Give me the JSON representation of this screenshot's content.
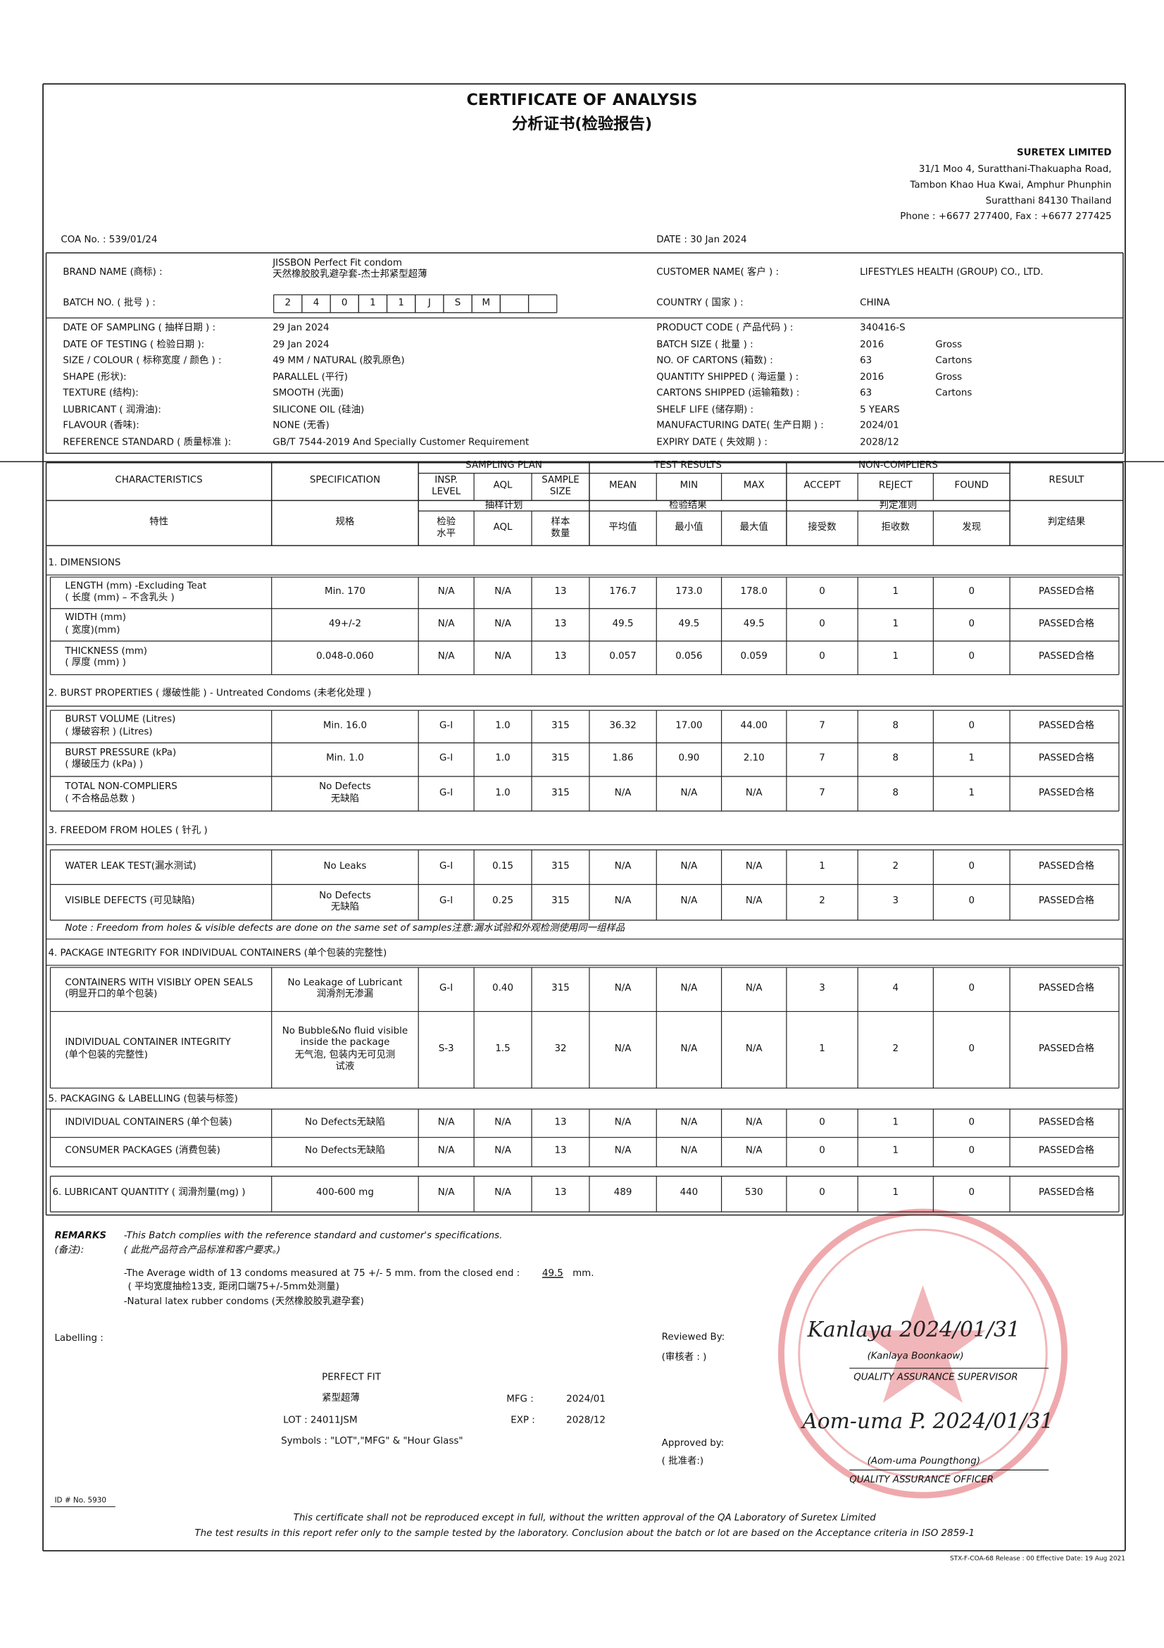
{
  "header": {
    "title": "CERTIFICATE OF ANALYSIS",
    "title_cn": "分析证书(检验报告)",
    "company": "SURETEX LIMITED",
    "address": [
      "31/1 Moo 4, Suratthani-Thakuapha Road,",
      "Tambon Khao Hua Kwai, Amphur Phunphin",
      "Suratthani  84130 Thailand",
      "Phone : +6677 277400, Fax : +6677 277425"
    ],
    "coa_no": "COA No. : 539/01/24",
    "date": "DATE : 30 Jan 2024"
  },
  "info": {
    "brand": {
      "label": "BRAND NAME (商标) :",
      "value": "JISSBON Perfect Fit condom\n天然橡胶胶乳避孕套-杰士邦紧型超薄"
    },
    "batch": {
      "label": "BATCH NO. ( 批号 ) :",
      "boxes": [
        "2",
        "4",
        "0",
        "1",
        "1",
        "J",
        "S",
        "M"
      ]
    },
    "customer": {
      "label": "CUSTOMER NAME( 客户 ) :",
      "value": "LIFESTYLES HEALTH (GROUP) CO., LTD."
    },
    "country": {
      "label": "COUNTRY ( 国家 ) :",
      "value": "CHINA"
    },
    "left": [
      [
        "DATE OF SAMPLING ( 抽样日期 ) :",
        "29 Jan 2024"
      ],
      [
        "DATE OF TESTING ( 检验日期 ):",
        "29 Jan 2024"
      ],
      [
        "SIZE / COLOUR ( 标称宽度 / 颜色 ) :",
        "49 MM / NATURAL (胶乳原色)"
      ],
      [
        "SHAPE (形状):",
        "PARALLEL (平行)"
      ],
      [
        "TEXTURE (结构):",
        "SMOOTH (光面)"
      ],
      [
        "LUBRICANT ( 润滑油):",
        "SILICONE OIL (硅油)"
      ],
      [
        "FLAVOUR (香味):",
        "NONE (无香)"
      ],
      [
        "REFERENCE STANDARD ( 质量标准 ):",
        "GB/T 7544-2019 And Specially Customer Requirement"
      ]
    ],
    "right": [
      [
        "PRODUCT CODE ( 产品代码 ) :",
        "340416-S"
      ],
      [
        "BATCH SIZE ( 批量 ) :",
        "2016",
        "Gross"
      ],
      [
        "NO. OF CARTONS (箱数) :",
        "63",
        "Cartons"
      ],
      [
        "QUANTITY SHIPPED ( 海运量 ) :",
        "2016",
        "Gross"
      ],
      [
        "CARTONS SHIPPED (运输箱数) :",
        "63",
        "Cartons"
      ],
      [
        "SHELF LIFE (储存期) :",
        "5 YEARS"
      ],
      [
        "MANUFACTURING DATE( 生产日期 ) :",
        "2024/01"
      ],
      [
        "EXPIRY DATE ( 失效期 ) :",
        "2028/12"
      ]
    ]
  },
  "table": {
    "groups": [
      "SAMPLING PLAN",
      "TEST RESULTS",
      "NON-COMPLIERS"
    ],
    "en": [
      "CHARACTERISTICS",
      "SPECIFICATION",
      "INSP.\nLEVEL",
      "AQL",
      "SAMPLE\nSIZE",
      "MEAN",
      "MIN",
      "MAX",
      "ACCEPT",
      "REJECT",
      "FOUND",
      "RESULT"
    ],
    "groups_cn": [
      "抽样计划",
      "检验结果",
      "判定准则"
    ],
    "cn": [
      "特性",
      "规格",
      "检验\n水平",
      "AQL",
      "样本\n数量",
      "平均值",
      "最小值",
      "最大值",
      "接受数",
      "拒收数",
      "发现",
      "判定结果"
    ],
    "sections": [
      {
        "title": "1. DIMENSIONS",
        "rows": [
          [
            "LENGTH (mm) -Excluding Teat\n( 长度 (mm) – 不含乳头 )",
            "Min. 170",
            "N/A",
            "N/A",
            "13",
            "176.7",
            "173.0",
            "178.0",
            "0",
            "1",
            "0",
            "PASSED合格"
          ],
          [
            "WIDTH  (mm)\n( 宽度)(mm)",
            "49+/-2",
            "N/A",
            "N/A",
            "13",
            "49.5",
            "49.5",
            "49.5",
            "0",
            "1",
            "0",
            "PASSED合格"
          ],
          [
            "THICKNESS  (mm)\n( 厚度 (mm) )",
            "0.048-0.060",
            "N/A",
            "N/A",
            "13",
            "0.057",
            "0.056",
            "0.059",
            "0",
            "1",
            "0",
            "PASSED合格"
          ]
        ]
      },
      {
        "title": "2. BURST PROPERTIES ( 爆破性能 ) - Untreated Condoms (未老化处理 )",
        "rows": [
          [
            "BURST VOLUME (Litres)\n( 爆破容积 ) (Litres)",
            "Min. 16.0",
            "G-I",
            "1.0",
            "315",
            "36.32",
            "17.00",
            "44.00",
            "7",
            "8",
            "0",
            "PASSED合格"
          ],
          [
            "BURST PRESSURE (kPa)\n( 爆破压力 (kPa) )",
            "Min. 1.0",
            "G-I",
            "1.0",
            "315",
            "1.86",
            "0.90",
            "2.10",
            "7",
            "8",
            "1",
            "PASSED合格"
          ],
          [
            "TOTAL NON-COMPLIERS\n( 不合格品总数 )",
            "No Defects\n无缺陷",
            "G-I",
            "1.0",
            "315",
            "N/A",
            "N/A",
            "N/A",
            "7",
            "8",
            "1",
            "PASSED合格"
          ]
        ]
      },
      {
        "title": "3. FREEDOM FROM HOLES ( 针孔 )",
        "rows": [
          [
            "WATER LEAK TEST(漏水测试)",
            "No Leaks",
            "G-I",
            "0.15",
            "315",
            "N/A",
            "N/A",
            "N/A",
            "1",
            "2",
            "0",
            "PASSED合格"
          ],
          [
            "VISIBLE DEFECTS (可见缺陷)",
            "No Defects\n无缺陷",
            "G-I",
            "0.25",
            "315",
            "N/A",
            "N/A",
            "N/A",
            "2",
            "3",
            "0",
            "PASSED合格"
          ]
        ],
        "note": "Note : Freedom from holes & visible defects are done on the same set of samples注意:漏水试验和外观检测使用同一组样品"
      },
      {
        "title": "4. PACKAGE INTEGRITY FOR INDIVIDUAL CONTAINERS (单个包装的完整性)",
        "rows": [
          [
            "CONTAINERS WITH VISIBLY OPEN SEALS\n(明显开口的单个包装)",
            "No Leakage of Lubricant\n润滑剂无渗漏",
            "G-I",
            "0.40",
            "315",
            "N/A",
            "N/A",
            "N/A",
            "3",
            "4",
            "0",
            "PASSED合格"
          ],
          [
            "INDIVIDUAL CONTAINER INTEGRITY\n(单个包装的完整性)",
            "No Bubble&No fluid visible\ninside the package\n无气泡, 包装内无可见测\n试液",
            "S-3",
            "1.5",
            "32",
            "N/A",
            "N/A",
            "N/A",
            "1",
            "2",
            "0",
            "PASSED合格"
          ]
        ]
      },
      {
        "title": "5. PACKAGING & LABELLING (包装与标签)",
        "rows": [
          [
            "INDIVIDUAL CONTAINERS (单个包装)",
            "No Defects无缺陷",
            "N/A",
            "N/A",
            "13",
            "N/A",
            "N/A",
            "N/A",
            "0",
            "1",
            "0",
            "PASSED合格"
          ],
          [
            "CONSUMER PACKAGES (消费包装)",
            "No Defects无缺陷",
            "N/A",
            "N/A",
            "13",
            "N/A",
            "N/A",
            "N/A",
            "0",
            "1",
            "0",
            "PASSED合格"
          ]
        ]
      },
      {
        "rows": [
          [
            "6. LUBRICANT QUANTITY ( 润滑剂量(mg) )",
            "400-600 mg",
            "N/A",
            "N/A",
            "13",
            "489",
            "440",
            "530",
            "0",
            "1",
            "0",
            "PASSED合格"
          ]
        ]
      }
    ]
  },
  "remarks": {
    "label": "REMARKS",
    "label_cn": "(备注):",
    "line1": "-This Batch complies with the reference standard and customer's specifications.",
    "line1_cn": "( 此批产品符合产品标准和客户要求。)",
    "line2": "-The Average width of 13 condoms measured at 75 +/- 5 mm. from the closed end :",
    "width_value": "49.5",
    "width_unit": "mm.",
    "line2_cn": "( 平均宽度抽检13支, 距闭口端75+/-5mm处测量)",
    "line3": "-Natural latex  rubber condoms (天然橡胶胶乳避孕套)"
  },
  "labelling": {
    "label": "Labelling :",
    "name": "PERFECT FIT",
    "name_cn": "紧型超薄",
    "lot": "LOT : 24011JSM",
    "mfg_label": "MFG :",
    "mfg": "2024/01",
    "exp_label": "EXP :",
    "exp": "2028/12",
    "symbols": "Symbols : \"LOT\",\"MFG\" & \"Hour Glass\""
  },
  "signatures": {
    "reviewed": "Reviewed By:",
    "reviewed_cn": "(审核者 : )",
    "reviewer_sign": "Kanlaya 2024/01/31",
    "reviewer": "(Kanlaya Boonkaow)",
    "reviewer_title": "QUALITY ASSURANCE SUPERVISOR",
    "approved": "Approved by:",
    "approved_cn": "( 批准者:)",
    "approver_sign": "Aom-uma P. 2024/01/31",
    "approver": "(Aom-uma Poungthong)",
    "approver_title": "QUALITY ASSURANCE OFFICER"
  },
  "footer": {
    "id": "ID # No. 5930",
    "line1": "This certificate shall not be reproduced except in full, without the written approval of the QA Laboratory of Suretex Limited",
    "line2": "The test results in this report refer only to the sample tested by the laboratory. Conclusion about the batch or lot are based on the Acceptance criteria in ISO 2859-1",
    "form": "STX-F-COA-68  Release : 00  Effective Date: 19 Aug 2021"
  }
}
